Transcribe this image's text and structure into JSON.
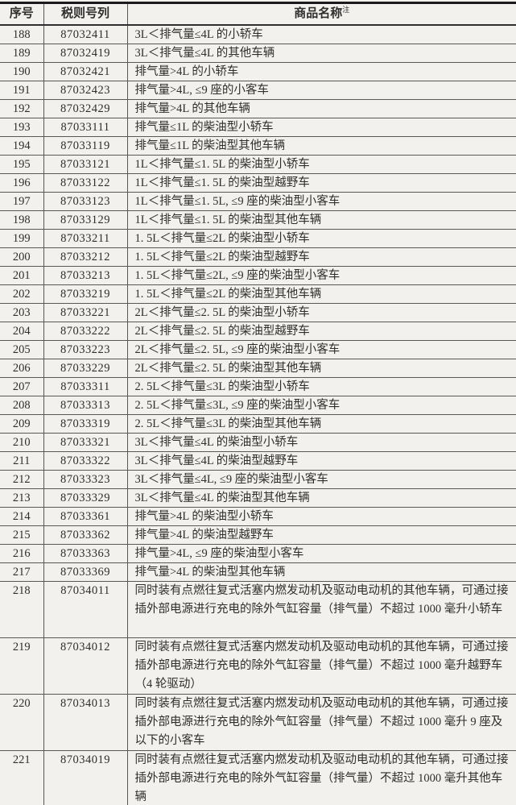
{
  "colors": {
    "page_background": "#f2f1ee",
    "text": "#2f2e2c",
    "grid_line": "#585858",
    "top_border": "#1b1b1b"
  },
  "table": {
    "columns": [
      {
        "key": "no",
        "label": "序号"
      },
      {
        "key": "code",
        "label": "税则号列"
      },
      {
        "key": "name",
        "label": "商品名称",
        "superscript": "注"
      }
    ],
    "rows": [
      {
        "no": "188",
        "code": "87032411",
        "name": "3L＜排气量≤4L 的小轿车"
      },
      {
        "no": "189",
        "code": "87032419",
        "name": "3L＜排气量≤4L 的其他车辆"
      },
      {
        "no": "190",
        "code": "87032421",
        "name": "排气量>4L 的小轿车"
      },
      {
        "no": "191",
        "code": "87032423",
        "name": "排气量>4L, ≤9 座的小客车"
      },
      {
        "no": "192",
        "code": "87032429",
        "name": "排气量>4L 的其他车辆"
      },
      {
        "no": "193",
        "code": "87033111",
        "name": "排气量≤1L 的柴油型小轿车"
      },
      {
        "no": "194",
        "code": "87033119",
        "name": "排气量≤1L 的柴油型其他车辆"
      },
      {
        "no": "195",
        "code": "87033121",
        "name": "1L＜排气量≤1. 5L 的柴油型小轿车"
      },
      {
        "no": "196",
        "code": "87033122",
        "name": "1L＜排气量≤1. 5L 的柴油型越野车"
      },
      {
        "no": "197",
        "code": "87033123",
        "name": "1L＜排气量≤1. 5L, ≤9 座的柴油型小客车"
      },
      {
        "no": "198",
        "code": "87033129",
        "name": "1L＜排气量≤1. 5L 的柴油型其他车辆"
      },
      {
        "no": "199",
        "code": "87033211",
        "name": "1. 5L＜排气量≤2L 的柴油型小轿车"
      },
      {
        "no": "200",
        "code": "87033212",
        "name": "1. 5L＜排气量≤2L 的柴油型越野车"
      },
      {
        "no": "201",
        "code": "87033213",
        "name": "1. 5L＜排气量≤2L, ≤9 座的柴油型小客车"
      },
      {
        "no": "202",
        "code": "87033219",
        "name": "1. 5L＜排气量≤2L 的柴油型其他车辆"
      },
      {
        "no": "203",
        "code": "87033221",
        "name": "2L＜排气量≤2. 5L 的柴油型小轿车"
      },
      {
        "no": "204",
        "code": "87033222",
        "name": "2L＜排气量≤2. 5L 的柴油型越野车"
      },
      {
        "no": "205",
        "code": "87033223",
        "name": "2L＜排气量≤2. 5L, ≤9 座的柴油型小客车"
      },
      {
        "no": "206",
        "code": "87033229",
        "name": "2L＜排气量≤2. 5L 的柴油型其他车辆"
      },
      {
        "no": "207",
        "code": "87033311",
        "name": "2. 5L＜排气量≤3L 的柴油型小轿车"
      },
      {
        "no": "208",
        "code": "87033313",
        "name": "2. 5L＜排气量≤3L, ≤9 座的柴油型小客车"
      },
      {
        "no": "209",
        "code": "87033319",
        "name": "2. 5L＜排气量≤3L 的柴油型其他车辆"
      },
      {
        "no": "210",
        "code": "87033321",
        "name": "3L＜排气量≤4L 的柴油型小轿车"
      },
      {
        "no": "211",
        "code": "87033322",
        "name": "3L＜排气量≤4L 的柴油型越野车"
      },
      {
        "no": "212",
        "code": "87033323",
        "name": "3L＜排气量≤4L, ≤9 座的柴油型小客车"
      },
      {
        "no": "213",
        "code": "87033329",
        "name": "3L＜排气量≤4L 的柴油型其他车辆"
      },
      {
        "no": "214",
        "code": "87033361",
        "name": "排气量>4L 的柴油型小轿车"
      },
      {
        "no": "215",
        "code": "87033362",
        "name": "排气量>4L 的柴油型越野车"
      },
      {
        "no": "216",
        "code": "87033363",
        "name": "排气量>4L, ≤9 座的柴油型小客车"
      },
      {
        "no": "217",
        "code": "87033369",
        "name": "排气量>4L 的柴油型其他车辆"
      },
      {
        "no": "218",
        "code": "87034011",
        "name": "同时装有点燃往复式活塞内燃发动机及驱动电动机的其他车辆，可通过接插外部电源进行充电的除外气缸容量（排气量）不超过 1000 毫升小轿车"
      },
      {
        "no": "219",
        "code": "87034012",
        "name": "同时装有点燃往复式活塞内燃发动机及驱动电动机的其他车辆，可通过接插外部电源进行充电的除外气缸容量（排气量）不超过 1000 毫升越野车（4 轮驱动）"
      },
      {
        "no": "220",
        "code": "87034013",
        "name": "同时装有点燃往复式活塞内燃发动机及驱动电动机的其他车辆，可通过接插外部电源进行充电的除外气缸容量（排气量）不超过 1000 毫升 9 座及以下的小客车"
      },
      {
        "no": "221",
        "code": "87034019",
        "name": "同时装有点燃往复式活塞内燃发动机及驱动电动机的其他车辆，可通过接插外部电源进行充电的除外气缸容量（排气量）不超过 1000 毫升其他车辆"
      }
    ]
  }
}
